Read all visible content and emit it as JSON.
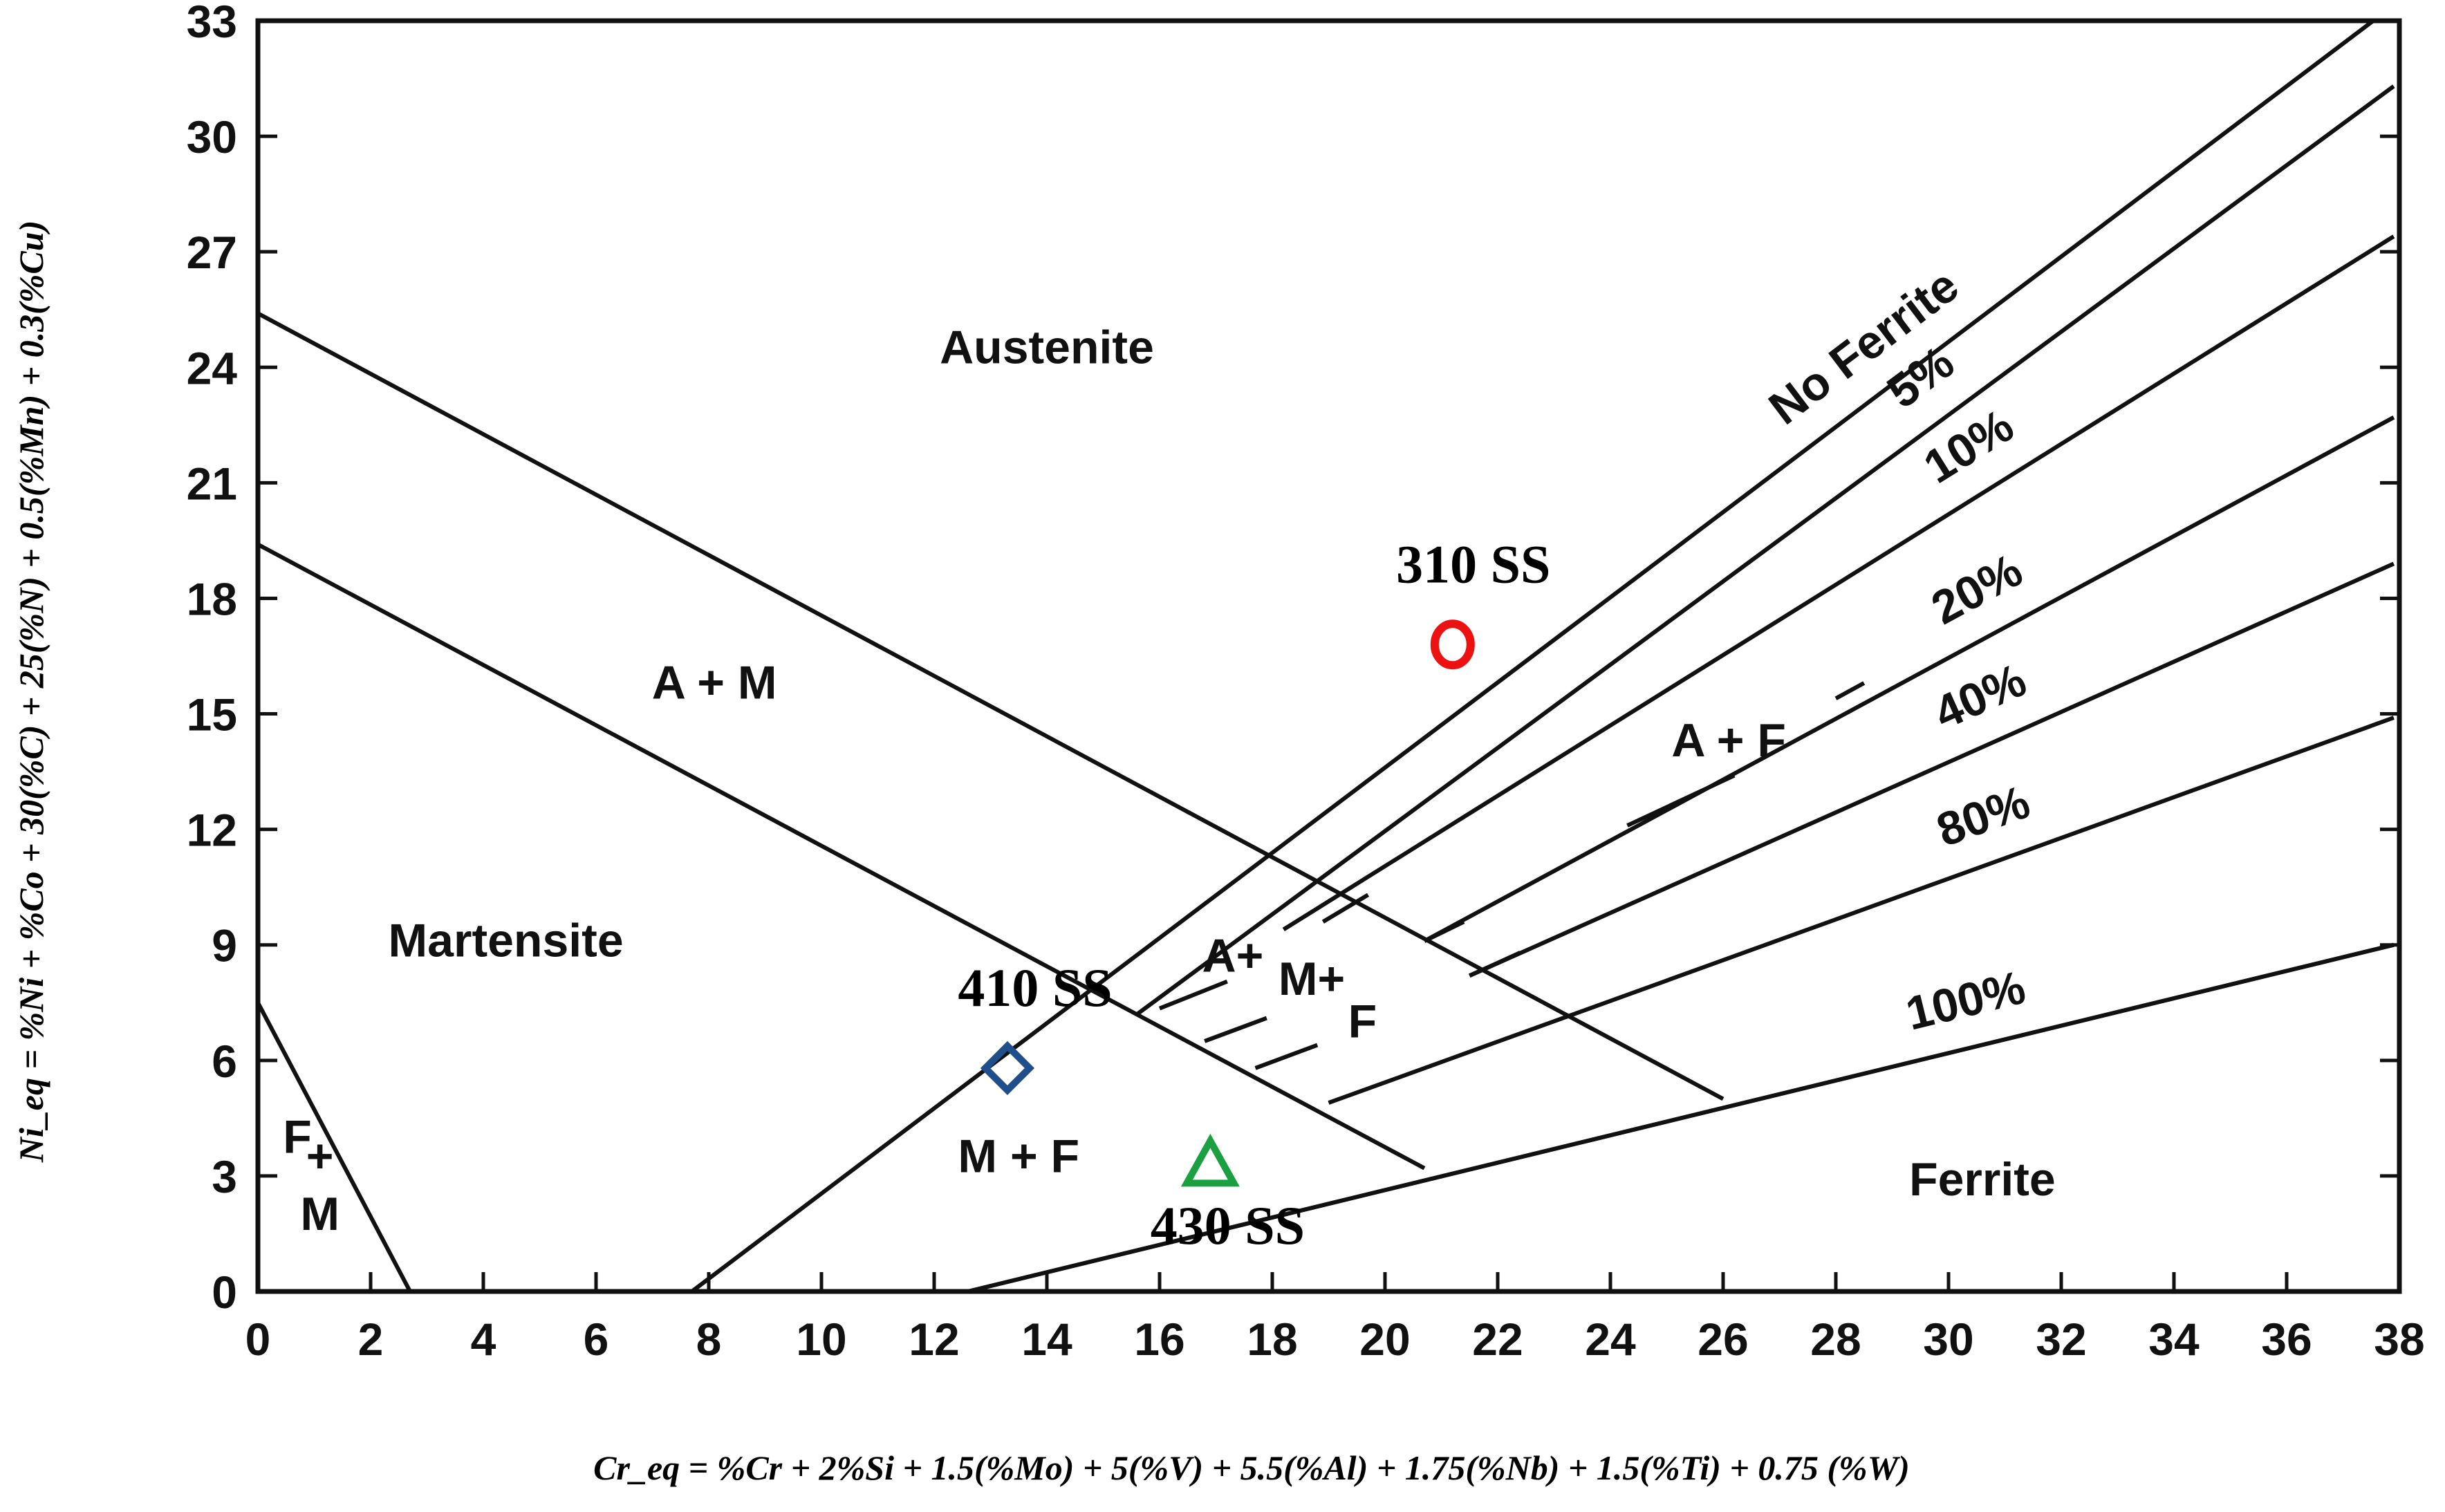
{
  "chart_data": {
    "type": "line",
    "xlabel": "Cr_eq = %Cr + 2%Si + 1.5(%Mo) + 5(%V) + 5.5(%Al) + 1.75(%Nb) + 1.5(%Ti) + 0.75 (%W)",
    "ylabel": "Ni_eq = %Ni + %Co + 30(%C) + 25(%N) + 0.5(%Mn) + 0.3(%Cu)",
    "xlim": [
      0,
      38
    ],
    "ylim": [
      0,
      33
    ],
    "x_ticks": [
      "0",
      "2",
      "4",
      "6",
      "8",
      "10",
      "12",
      "14",
      "16",
      "18",
      "20",
      "22",
      "24",
      "26",
      "28",
      "30",
      "32",
      "34",
      "36",
      "38"
    ],
    "y_ticks": [
      "0",
      "3",
      "6",
      "9",
      "12",
      "15",
      "18",
      "21",
      "24",
      "27",
      "30",
      "33"
    ],
    "grid": false,
    "boundary_lines": [
      {
        "points": [
          [
            0,
            25.4
          ],
          [
            26,
            5
          ]
        ]
      },
      {
        "points": [
          [
            0,
            19.4
          ],
          [
            20.7,
            3.2
          ]
        ]
      },
      {
        "points": [
          [
            0,
            7.5
          ],
          [
            2.7,
            0
          ]
        ]
      },
      {
        "points": [
          [
            12.6,
            0
          ],
          [
            37.9,
            9
          ]
        ]
      }
    ],
    "ferrite_lines": [
      {
        "label": "No Ferrite",
        "points": [
          [
            7.7,
            0
          ],
          [
            37.9,
            33.4
          ]
        ]
      },
      {
        "label": "5%",
        "points": [
          [
            15.6,
            7.2
          ],
          [
            37.9,
            31.3
          ]
        ]
      },
      {
        "label": "10%",
        "points": [
          [
            18.2,
            9.4
          ],
          [
            37.9,
            27.4
          ]
        ]
      },
      {
        "label": "20%",
        "points": [
          [
            20.7,
            9.1
          ],
          [
            37.9,
            22.7
          ]
        ]
      },
      {
        "label": "40%",
        "points": [
          [
            21.5,
            8.2
          ],
          [
            37.9,
            18.9
          ]
        ]
      },
      {
        "label": "80%",
        "points": [
          [
            19.0,
            4.9
          ],
          [
            37.9,
            14.9
          ]
        ]
      },
      {
        "label": "100%",
        "points": [
          [
            12.6,
            0
          ],
          [
            37.9,
            9
          ]
        ]
      }
    ],
    "region_labels": [
      {
        "text": "Austenite",
        "x": 14.0,
        "y": 24.1
      },
      {
        "text": "A + M",
        "x": 8.1,
        "y": 15.4
      },
      {
        "text": "Martensite",
        "x": 4.4,
        "y": 8.7
      },
      {
        "text": "A + F",
        "x": 26.1,
        "y": 13.9
      },
      {
        "text": "A+",
        "x": 17.3,
        "y": 8.3
      },
      {
        "text": "M+",
        "x": 18.7,
        "y": 7.7
      },
      {
        "text": "F",
        "x": 19.6,
        "y": 6.6
      },
      {
        "text": "M + F",
        "x": 13.5,
        "y": 3.1
      },
      {
        "text": "Ferrite",
        "x": 30.6,
        "y": 2.5
      },
      {
        "text": "F",
        "x": 0.7,
        "y": 3.6
      },
      {
        "text": "+",
        "x": 1.1,
        "y": 3.1
      },
      {
        "text": "M",
        "x": 1.1,
        "y": 1.6
      }
    ],
    "series": [
      {
        "name": "310 SS",
        "marker": "circle",
        "color": "#ee1111",
        "x": 21.2,
        "y": 16.8
      },
      {
        "name": "410 SS",
        "marker": "diamond",
        "color": "#1f4e8c",
        "x": 13.3,
        "y": 5.8
      },
      {
        "name": "430 SS",
        "marker": "triangle",
        "color": "#1aa040",
        "x": 16.9,
        "y": 3.3
      }
    ]
  }
}
